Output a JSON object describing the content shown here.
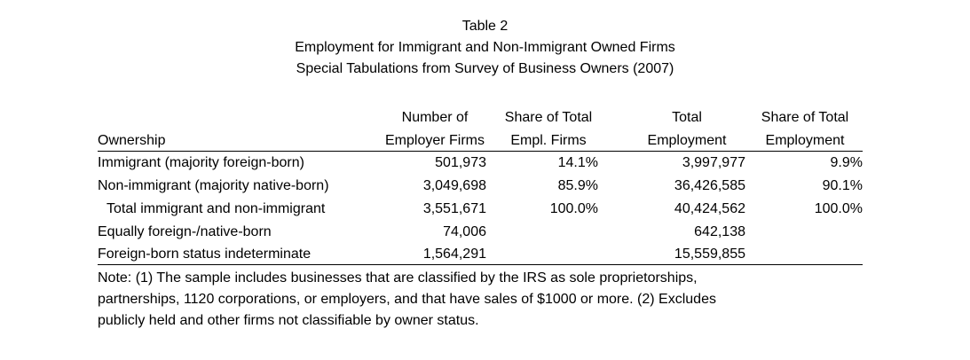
{
  "title": {
    "line1": "Table 2",
    "line2": "Employment for Immigrant and Non-Immigrant Owned Firms",
    "line3": "Special Tabulations from Survey of Business Owners (2007)"
  },
  "columns": {
    "ownership": "Ownership",
    "employer_firms": [
      "Number of",
      "Employer Firms"
    ],
    "share_firms": [
      "Share of Total",
      "Empl. Firms"
    ],
    "total_employment": [
      "Total",
      "Employment"
    ],
    "share_employment": [
      "Share of Total",
      "Employment"
    ]
  },
  "rows": [
    {
      "label": "Immigrant (majority foreign-born)",
      "firms": "501,973",
      "share_firms": "14.1%",
      "employment": "3,997,977",
      "share_employment": "9.9%"
    },
    {
      "label": "Non-immigrant (majority native-born)",
      "firms": "3,049,698",
      "share_firms": "85.9%",
      "employment": "36,426,585",
      "share_employment": "90.1%"
    },
    {
      "label": "Total immigrant and non-immigrant",
      "firms": "3,551,671",
      "share_firms": "100.0%",
      "employment": "40,424,562",
      "share_employment": "100.0%"
    },
    {
      "label": "Equally foreign-/native-born",
      "firms": "74,006",
      "share_firms": "",
      "employment": "642,138",
      "share_employment": ""
    },
    {
      "label": "Foreign-born status indeterminate",
      "firms": "1,564,291",
      "share_firms": "",
      "employment": "15,559,855",
      "share_employment": ""
    }
  ],
  "note": [
    "Note: (1) The sample includes businesses that are classified by the IRS as sole proprietorships,",
    "partnerships, 1120 corporations, or employers, and that have sales of $1000 or more.  (2) Excludes",
    "publicly held and other firms not classifiable by owner status."
  ]
}
